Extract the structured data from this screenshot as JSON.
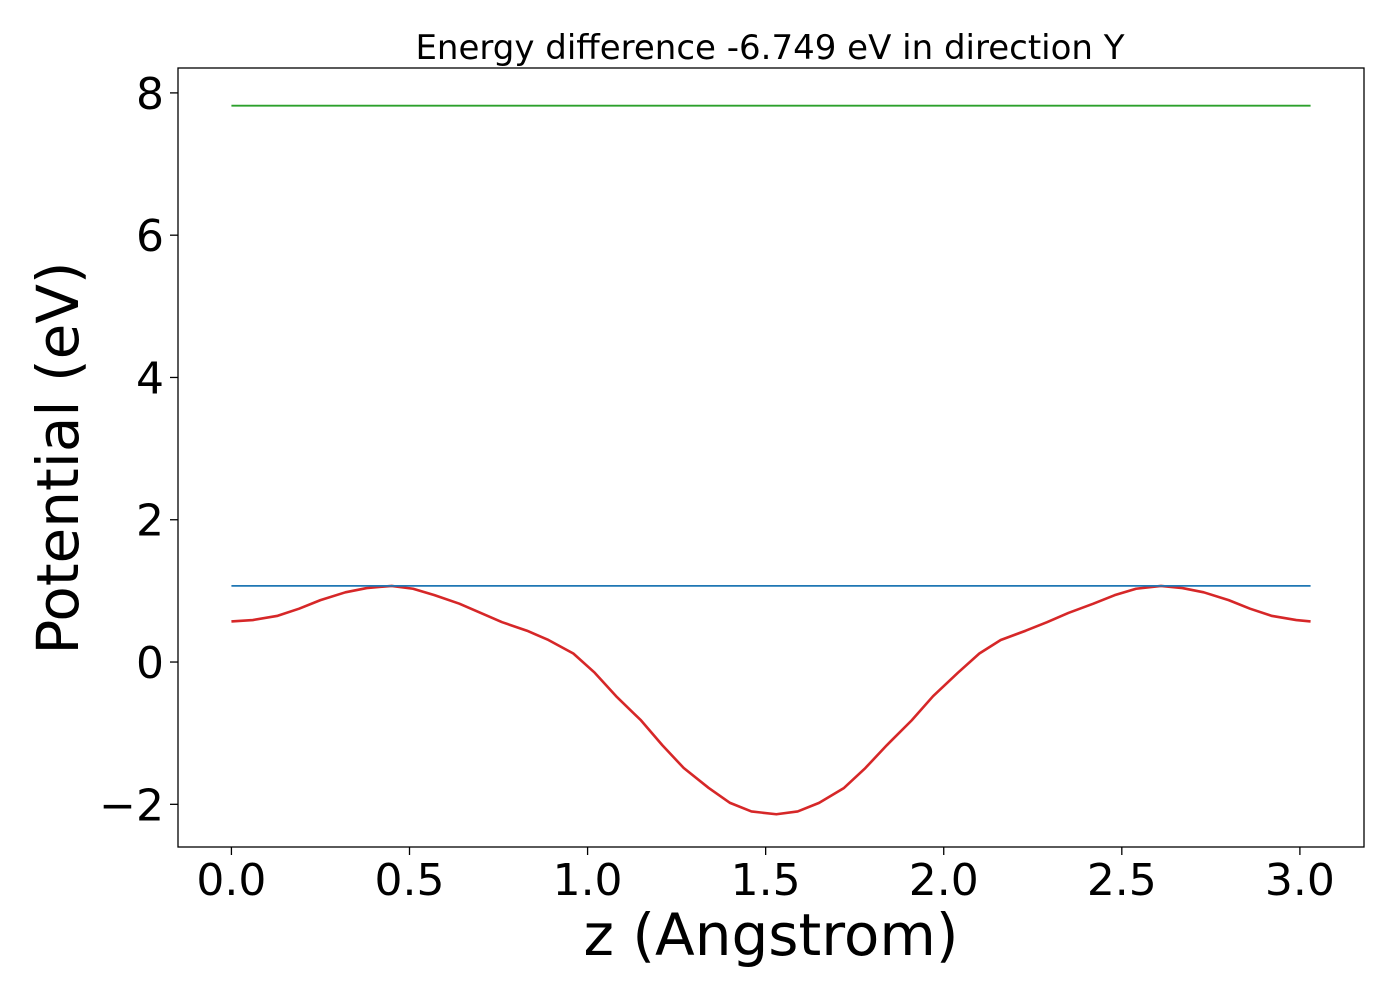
{
  "chart_data": {
    "type": "line",
    "title": "Energy difference -6.749 eV in direction Y",
    "xlabel": "z (Angstrom)",
    "ylabel": "Potential (eV)",
    "xlim": [
      -0.15,
      3.18
    ],
    "ylim": [
      -2.6,
      8.35
    ],
    "xticks": [
      0.0,
      0.5,
      1.0,
      1.5,
      2.0,
      2.5,
      3.0
    ],
    "xtick_labels": [
      "0.0",
      "0.5",
      "1.0",
      "1.5",
      "2.0",
      "2.5",
      "3.0"
    ],
    "yticks": [
      -2,
      0,
      2,
      4,
      6,
      8
    ],
    "ytick_labels": [
      "−2",
      "0",
      "2",
      "4",
      "6",
      "8"
    ],
    "grid": false,
    "legend": "none",
    "series": [
      {
        "color": "#d62728",
        "x": [
          0.0,
          0.06,
          0.13,
          0.19,
          0.25,
          0.32,
          0.38,
          0.45,
          0.51,
          0.57,
          0.64,
          0.7,
          0.76,
          0.83,
          0.89,
          0.96,
          1.02,
          1.08,
          1.15,
          1.21,
          1.27,
          1.34,
          1.4,
          1.46,
          1.53,
          1.59,
          1.65,
          1.72,
          1.78,
          1.84,
          1.91,
          1.97,
          2.04,
          2.1,
          2.16,
          2.23,
          2.29,
          2.35,
          2.42,
          2.48,
          2.54,
          2.61,
          2.67,
          2.73,
          2.8,
          2.86,
          2.92,
          2.99,
          3.03
        ],
        "y": [
          0.57,
          0.59,
          0.65,
          0.75,
          0.87,
          0.98,
          1.04,
          1.07,
          1.03,
          0.94,
          0.82,
          0.69,
          0.56,
          0.44,
          0.31,
          0.12,
          -0.15,
          -0.48,
          -0.82,
          -1.17,
          -1.49,
          -1.77,
          -1.98,
          -2.1,
          -2.14,
          -2.1,
          -1.98,
          -1.77,
          -1.49,
          -1.17,
          -0.82,
          -0.48,
          -0.15,
          0.12,
          0.31,
          0.44,
          0.56,
          0.69,
          0.82,
          0.94,
          1.03,
          1.07,
          1.04,
          0.98,
          0.87,
          0.75,
          0.65,
          0.59,
          0.57
        ]
      },
      {
        "color": "#1f77b4",
        "x": [
          0.0,
          3.03
        ],
        "y": [
          1.07,
          1.07
        ]
      },
      {
        "color": "#2ca02c",
        "x": [
          0.0,
          3.03
        ],
        "y": [
          7.82,
          7.82
        ]
      }
    ]
  }
}
